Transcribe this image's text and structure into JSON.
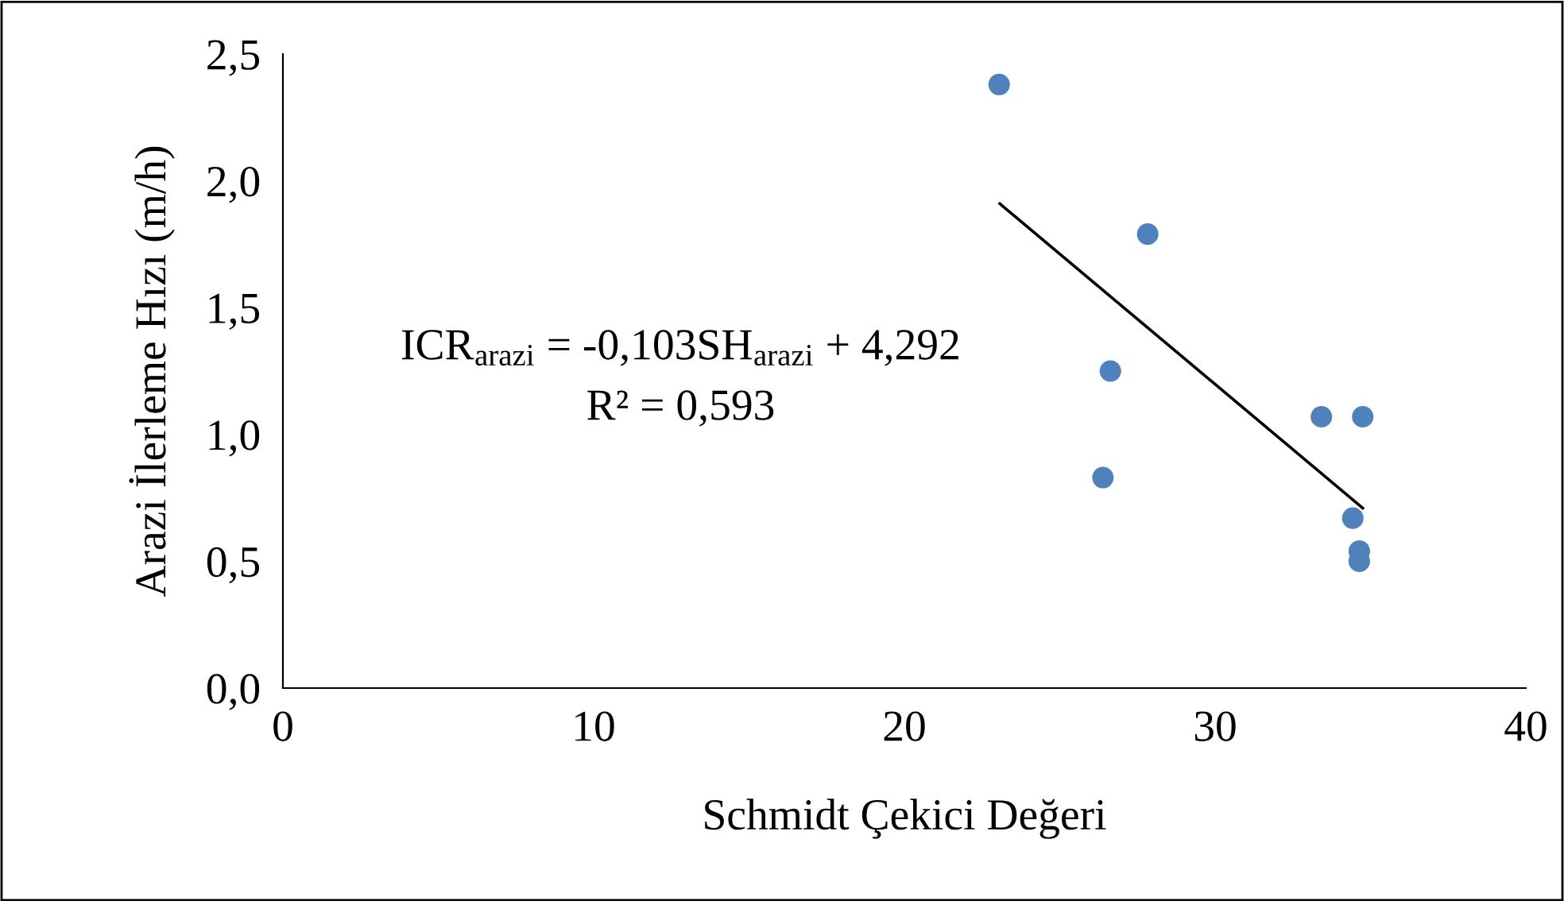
{
  "chart_data": {
    "type": "scatter",
    "xlabel": "Schmidt Çekici Değeri",
    "ylabel": "Arazi İlerleme Hızı (m/h)",
    "series": [
      {
        "color": "#4f81bd",
        "marker": "circle",
        "x": [
          23.05,
          27.83,
          26.63,
          26.39,
          33.42,
          34.75,
          34.43,
          34.64,
          34.64
        ],
        "values": [
          2.38,
          1.79,
          1.25,
          0.83,
          1.07,
          1.07,
          0.67,
          0.54,
          0.5
        ]
      },
      {
        "type": "line",
        "color": "#000000",
        "marker": "none",
        "line_style": "solid",
        "x": [
          23.07,
          34.75
        ],
        "values": [
          1.91,
          0.71
        ]
      }
    ],
    "annotations": [
      "ICR$_{arazi}$ = -0,103SH$_{arazi}$ + 4,292",
      "R² = 0,593"
    ],
    "xlim": [
      0,
      40
    ],
    "xticks": [
      0,
      10,
      20,
      30,
      40
    ],
    "ylim": [
      0,
      2.5
    ],
    "yticks": [
      {
        "value": 0,
        "label": "0,0"
      },
      {
        "value": 0.5,
        "label": "0,5"
      },
      {
        "value": 1,
        "label": "1,0"
      },
      {
        "value": 1.5,
        "label": "1,5"
      },
      {
        "value": 2,
        "label": "2,0"
      },
      {
        "value": 2.5,
        "label": "2,5"
      }
    ],
    "grid": false,
    "legend": false
  }
}
